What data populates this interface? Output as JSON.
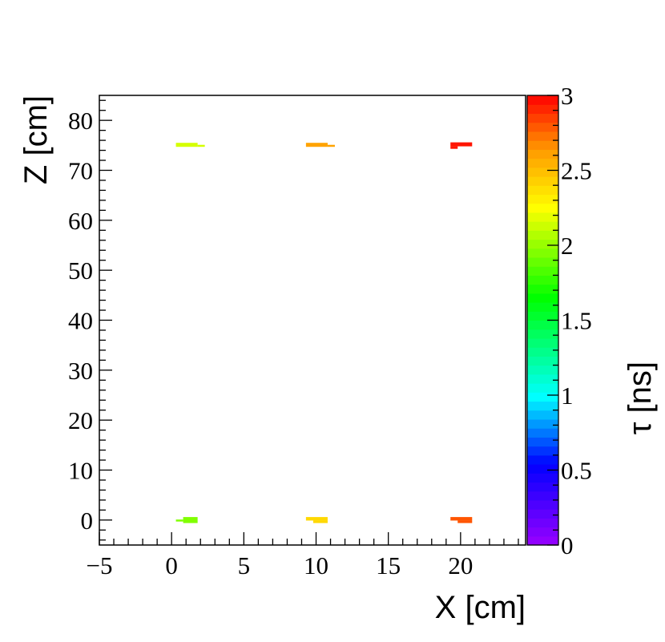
{
  "chart_data": {
    "type": "heatmap",
    "xlabel": "X [cm]",
    "ylabel": "Z [cm]",
    "zlabel": "τ [ns]",
    "xlim": [
      -5,
      24.5
    ],
    "ylim": [
      -5,
      85
    ],
    "zlim": [
      0,
      3
    ],
    "x_ticks": [
      {
        "value": -5,
        "label": "−5"
      },
      {
        "value": 0,
        "label": "0"
      },
      {
        "value": 5,
        "label": "5"
      },
      {
        "value": 10,
        "label": "10"
      },
      {
        "value": 15,
        "label": "15"
      },
      {
        "value": 20,
        "label": "20"
      }
    ],
    "y_ticks": [
      {
        "value": 0,
        "label": "0"
      },
      {
        "value": 10,
        "label": "10"
      },
      {
        "value": 20,
        "label": "20"
      },
      {
        "value": 30,
        "label": "30"
      },
      {
        "value": 40,
        "label": "40"
      },
      {
        "value": 50,
        "label": "50"
      },
      {
        "value": 60,
        "label": "60"
      },
      {
        "value": 70,
        "label": "70"
      },
      {
        "value": 80,
        "label": "80"
      }
    ],
    "z_ticks": [
      {
        "value": 0,
        "label": "0"
      },
      {
        "value": 0.5,
        "label": "0.5"
      },
      {
        "value": 1,
        "label": "1"
      },
      {
        "value": 1.5,
        "label": "1.5"
      },
      {
        "value": 2,
        "label": "2"
      },
      {
        "value": 2.5,
        "label": "2.5"
      },
      {
        "value": 3,
        "label": "3"
      }
    ],
    "cells": [
      {
        "x0": 0.3,
        "x1": 1.8,
        "y0": 74.7,
        "y1": 75.5,
        "z": 2.15
      },
      {
        "x0": 1.8,
        "x1": 2.3,
        "y0": 74.7,
        "y1": 75.1,
        "z": 2.15
      },
      {
        "x0": 9.3,
        "x1": 10.8,
        "y0": 74.7,
        "y1": 75.5,
        "z": 2.6
      },
      {
        "x0": 10.8,
        "x1": 11.3,
        "y0": 74.7,
        "y1": 75.1,
        "z": 2.6
      },
      {
        "x0": 19.3,
        "x1": 20.8,
        "y0": 74.8,
        "y1": 75.6,
        "z": 2.95
      },
      {
        "x0": 19.3,
        "x1": 19.8,
        "y0": 74.3,
        "y1": 74.8,
        "z": 2.95
      },
      {
        "x0": 0.3,
        "x1": 0.8,
        "y0": -0.3,
        "y1": 0.1,
        "z": 1.95
      },
      {
        "x0": 0.8,
        "x1": 1.8,
        "y0": -0.6,
        "y1": 0.6,
        "z": 1.95
      },
      {
        "x0": 9.3,
        "x1": 10.8,
        "y0": -0.1,
        "y1": 0.6,
        "z": 2.4
      },
      {
        "x0": 9.8,
        "x1": 10.8,
        "y0": -0.6,
        "y1": -0.1,
        "z": 2.4
      },
      {
        "x0": 19.3,
        "x1": 20.8,
        "y0": -0.1,
        "y1": 0.6,
        "z": 2.8
      },
      {
        "x0": 19.8,
        "x1": 20.8,
        "y0": -0.6,
        "y1": -0.1,
        "z": 2.8
      }
    ]
  }
}
